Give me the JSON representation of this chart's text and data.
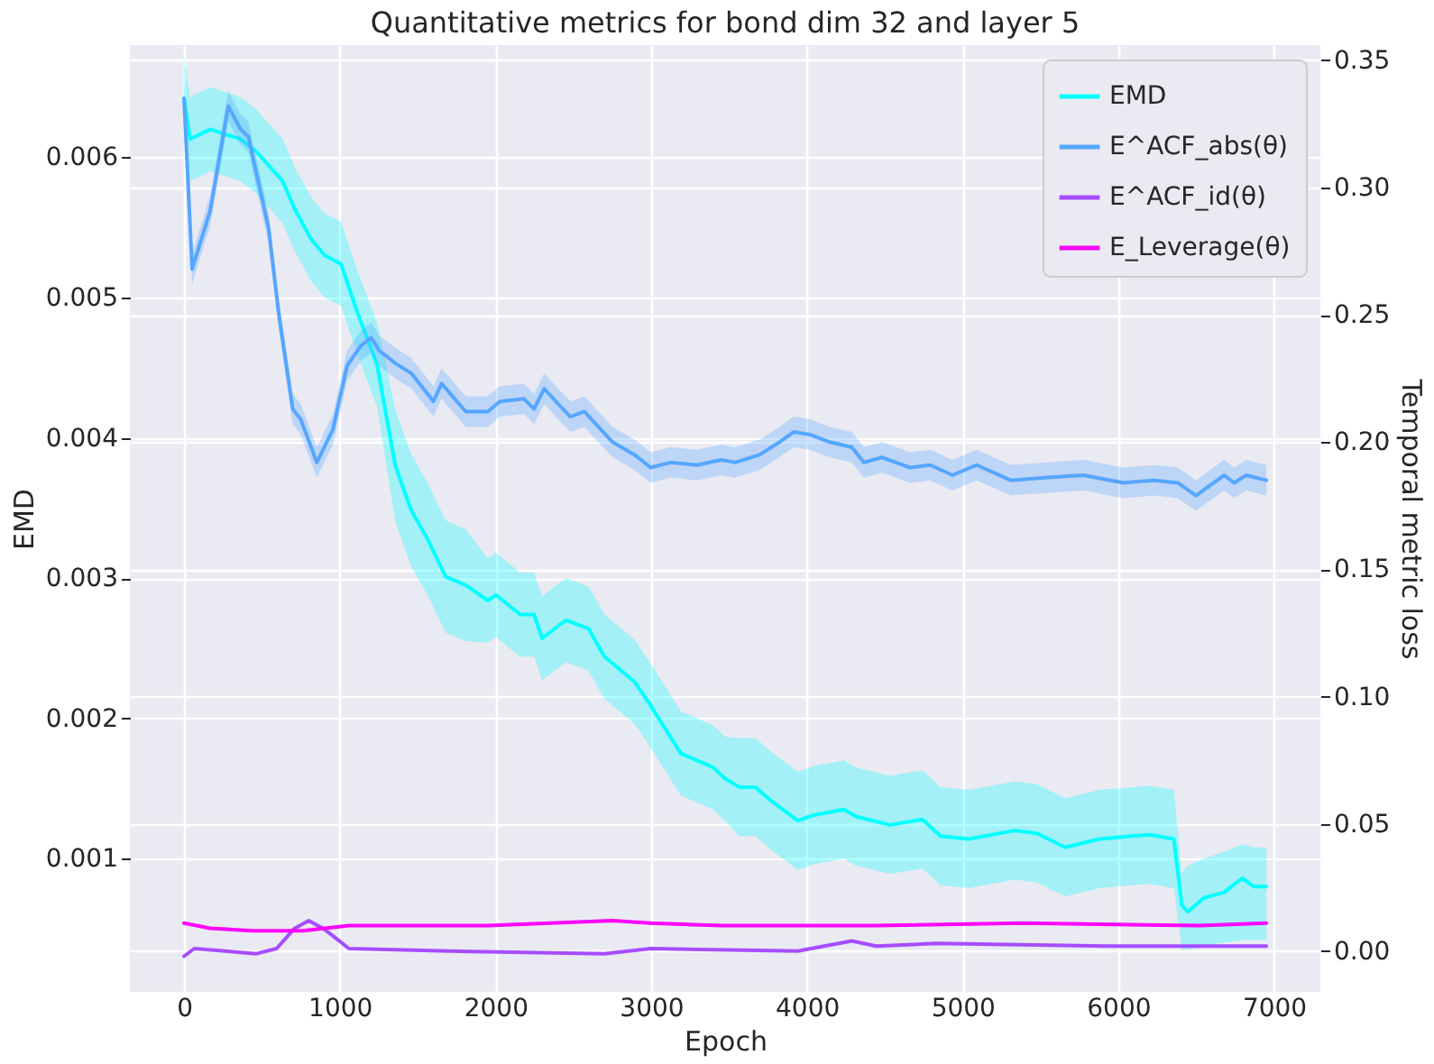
{
  "chart_data": {
    "type": "line",
    "title": "Quantitative metrics for bond dim 32 and layer 5",
    "xlabel": "Epoch",
    "ylabel": "EMD",
    "y2label": "Temporal metric loss",
    "xlim": [
      -348,
      7298
    ],
    "xticks": [
      0,
      1000,
      2000,
      3000,
      4000,
      5000,
      6000,
      7000
    ],
    "ylim": [
      5e-05,
      0.0068
    ],
    "yticks": [
      0.001,
      0.002,
      0.003,
      0.004,
      0.005,
      0.006
    ],
    "y2lim": [
      -0.016,
      0.356
    ],
    "y2ticks": [
      {
        "value": 0,
        "label": "0.00"
      },
      {
        "value": 0.05,
        "label": "0.05"
      },
      {
        "value": 0.1,
        "label": "0.10"
      },
      {
        "value": 0.15,
        "label": "0.15"
      },
      {
        "value": 0.2,
        "label": "0.20"
      },
      {
        "value": 0.25,
        "label": "0.25"
      },
      {
        "value": 0.3,
        "label": "0.30"
      },
      {
        "value": 0.35,
        "label": "0.35"
      }
    ],
    "grid": true,
    "legend": "top right",
    "series": [
      {
        "name": "EMD",
        "color": "#00ffff",
        "axis": "y",
        "x": [
          0,
          39,
          168,
          362,
          465,
          633,
          711,
          814,
          904,
          1008,
          1111,
          1240,
          1357,
          1460,
          1563,
          1680,
          1809,
          1951,
          2003,
          2158,
          2248,
          2300,
          2403,
          2455,
          2597,
          2700,
          2894,
          2997,
          3191,
          3398,
          3475,
          3566,
          3669,
          3773,
          3941,
          4044,
          4238,
          4315,
          4535,
          4742,
          4858,
          5039,
          5336,
          5478,
          5659,
          5879,
          6085,
          6202,
          6357,
          6408,
          6447,
          6550,
          6680,
          6796,
          6873,
          6951
        ],
        "values": [
          0.00642,
          0.00613,
          0.0062,
          0.00613,
          0.00604,
          0.00583,
          0.00563,
          0.00542,
          0.0053,
          0.00524,
          0.0049,
          0.00452,
          0.0038,
          0.00348,
          0.00328,
          0.00301,
          0.00295,
          0.00284,
          0.00288,
          0.00274,
          0.00274,
          0.00257,
          0.00266,
          0.0027,
          0.00264,
          0.00244,
          0.00226,
          0.00209,
          0.00175,
          0.00165,
          0.00157,
          0.00151,
          0.00151,
          0.00141,
          0.00127,
          0.00131,
          0.00135,
          0.0013,
          0.00124,
          0.00128,
          0.00116,
          0.00114,
          0.0012,
          0.00118,
          0.00108,
          0.00114,
          0.00116,
          0.00117,
          0.00114,
          0.00067,
          0.00062,
          0.00072,
          0.00076,
          0.00086,
          0.0008,
          0.0008
        ],
        "lower": [
          0.00612,
          0.00583,
          0.0059,
          0.00583,
          0.00574,
          0.00553,
          0.00533,
          0.00512,
          0.005,
          0.00494,
          0.0046,
          0.00422,
          0.0034,
          0.00308,
          0.00288,
          0.00261,
          0.00255,
          0.00254,
          0.00258,
          0.00244,
          0.00244,
          0.00227,
          0.00236,
          0.0024,
          0.00234,
          0.00214,
          0.00196,
          0.00179,
          0.00145,
          0.00135,
          0.00127,
          0.00116,
          0.00116,
          0.00106,
          0.00092,
          0.00096,
          0.001,
          0.00095,
          0.00089,
          0.00093,
          0.00081,
          0.00079,
          0.00085,
          0.00083,
          0.00073,
          0.00079,
          0.00081,
          0.00082,
          0.00079,
          0.00035,
          0.00035,
          0.00038,
          0.0004,
          0.00042,
          0.00042,
          0.00042
        ],
        "upper": [
          0.00672,
          0.00643,
          0.0065,
          0.00643,
          0.00634,
          0.00613,
          0.00593,
          0.00572,
          0.0056,
          0.00554,
          0.0052,
          0.00482,
          0.0042,
          0.00388,
          0.00368,
          0.00341,
          0.00335,
          0.00314,
          0.00318,
          0.00304,
          0.00304,
          0.00287,
          0.00296,
          0.003,
          0.00294,
          0.00274,
          0.00256,
          0.00239,
          0.00205,
          0.00195,
          0.00187,
          0.00186,
          0.00186,
          0.00176,
          0.00162,
          0.00166,
          0.0017,
          0.00165,
          0.00159,
          0.00163,
          0.00151,
          0.00149,
          0.00155,
          0.00153,
          0.00143,
          0.00149,
          0.00151,
          0.00152,
          0.00149,
          0.0009,
          0.00095,
          0.001,
          0.00105,
          0.0011,
          0.00108,
          0.00108
        ]
      },
      {
        "name": "E^ACF_abs(θ)",
        "color": "#55a6ff",
        "axis": "y2",
        "x": [
          0,
          52,
          168,
          284,
          362,
          413,
          543,
          607,
          698,
          749,
          853,
          956,
          1047,
          1137,
          1202,
          1253,
          1357,
          1460,
          1602,
          1654,
          1809,
          1951,
          2028,
          2183,
          2248,
          2313,
          2403,
          2481,
          2571,
          2752,
          2894,
          2997,
          3127,
          3295,
          3450,
          3540,
          3695,
          3824,
          3915,
          4018,
          4147,
          4289,
          4367,
          4483,
          4664,
          4793,
          4935,
          5090,
          5310,
          5530,
          5775,
          6034,
          6227,
          6382,
          6499,
          6680,
          6744,
          6822,
          6951
        ],
        "values": [
          0.335,
          0.268,
          0.291,
          0.332,
          0.323,
          0.32,
          0.284,
          0.251,
          0.213,
          0.209,
          0.192,
          0.205,
          0.23,
          0.238,
          0.241,
          0.236,
          0.231,
          0.227,
          0.216,
          0.223,
          0.212,
          0.212,
          0.216,
          0.217,
          0.213,
          0.221,
          0.215,
          0.21,
          0.212,
          0.2,
          0.195,
          0.19,
          0.192,
          0.191,
          0.193,
          0.192,
          0.195,
          0.2,
          0.204,
          0.203,
          0.2,
          0.198,
          0.192,
          0.194,
          0.19,
          0.191,
          0.187,
          0.191,
          0.185,
          0.186,
          0.187,
          0.184,
          0.185,
          0.184,
          0.179,
          0.187,
          0.184,
          0.187,
          0.185
        ],
        "lower": [
          0.329,
          0.262,
          0.285,
          0.326,
          0.317,
          0.314,
          0.278,
          0.245,
          0.207,
          0.203,
          0.186,
          0.199,
          0.224,
          0.232,
          0.235,
          0.23,
          0.225,
          0.221,
          0.21,
          0.217,
          0.206,
          0.206,
          0.21,
          0.211,
          0.207,
          0.215,
          0.209,
          0.204,
          0.206,
          0.194,
          0.189,
          0.184,
          0.186,
          0.185,
          0.187,
          0.186,
          0.189,
          0.194,
          0.198,
          0.197,
          0.194,
          0.192,
          0.186,
          0.188,
          0.184,
          0.185,
          0.181,
          0.185,
          0.179,
          0.18,
          0.181,
          0.178,
          0.179,
          0.178,
          0.173,
          0.181,
          0.178,
          0.181,
          0.179
        ],
        "upper": [
          0.341,
          0.274,
          0.297,
          0.338,
          0.329,
          0.326,
          0.29,
          0.257,
          0.219,
          0.215,
          0.198,
          0.211,
          0.236,
          0.244,
          0.247,
          0.242,
          0.237,
          0.233,
          0.222,
          0.229,
          0.218,
          0.218,
          0.222,
          0.223,
          0.219,
          0.227,
          0.221,
          0.216,
          0.218,
          0.206,
          0.201,
          0.196,
          0.198,
          0.197,
          0.199,
          0.198,
          0.201,
          0.206,
          0.21,
          0.209,
          0.206,
          0.204,
          0.198,
          0.2,
          0.196,
          0.197,
          0.193,
          0.197,
          0.191,
          0.192,
          0.193,
          0.19,
          0.191,
          0.19,
          0.185,
          0.193,
          0.19,
          0.193,
          0.191
        ]
      },
      {
        "name": "E^ACF_id(θ)",
        "color": "#a64dff",
        "axis": "y2",
        "x": [
          0,
          65,
          465,
          594,
          711,
          801,
          891,
          956,
          1059,
          1705,
          2700,
          2997,
          3941,
          4289,
          4444,
          4832,
          5930,
          6951
        ],
        "values": [
          -0.002,
          0.001,
          -0.001,
          0.001,
          0.009,
          0.012,
          0.009,
          0.006,
          0.001,
          0,
          -0.001,
          0.001,
          0,
          0.004,
          0.002,
          0.003,
          0.002,
          0.002
        ]
      },
      {
        "name": "E_Leverage(θ)",
        "color": "#ff00ff",
        "axis": "y2",
        "x": [
          0,
          168,
          439,
          762,
          1059,
          1951,
          2752,
          2997,
          3450,
          4444,
          5388,
          6524,
          6951
        ],
        "values": [
          0.011,
          0.009,
          0.008,
          0.008,
          0.01,
          0.01,
          0.012,
          0.011,
          0.01,
          0.01,
          0.011,
          0.01,
          0.011
        ]
      }
    ]
  }
}
